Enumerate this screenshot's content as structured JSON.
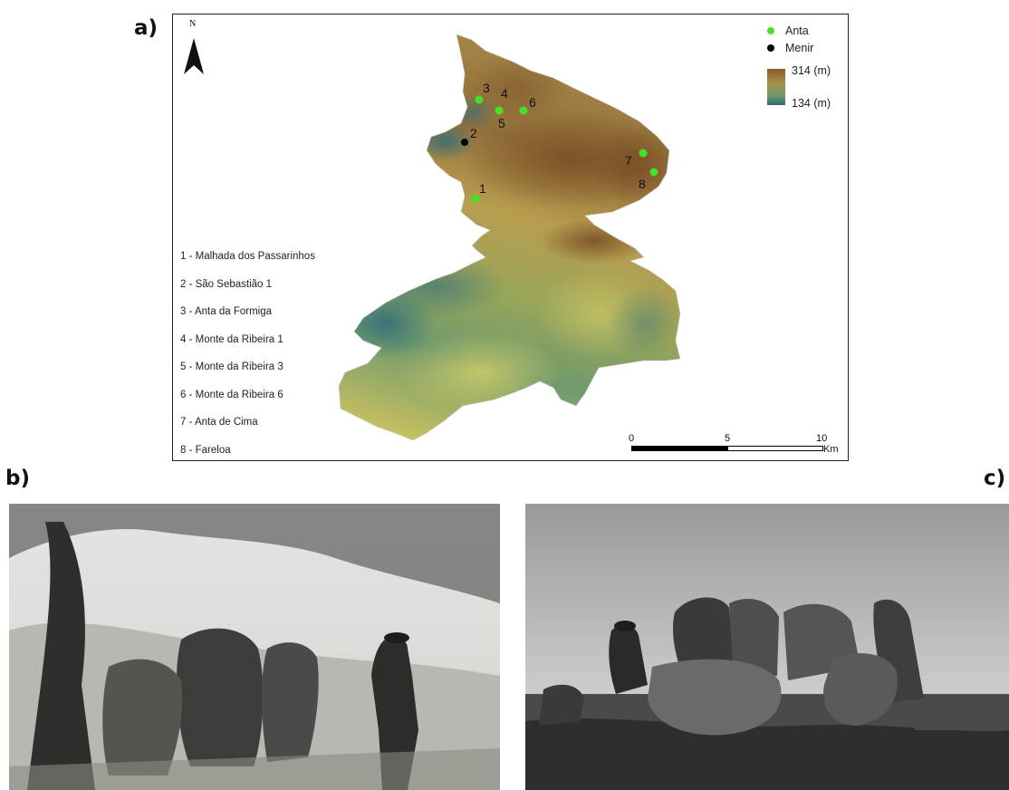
{
  "panels": {
    "a": "a)",
    "b": "b)",
    "c": "c)"
  },
  "map": {
    "north_label": "N",
    "legend": {
      "anta": "Anta",
      "menir": "Menir",
      "anta_color": "#44e02a",
      "menir_color": "#000000",
      "elev_high": "314 (m)",
      "elev_low": "134 (m)"
    },
    "scale_bar": {
      "tick_0": "0",
      "tick_5": "5",
      "tick_10": "10",
      "unit": "Km"
    },
    "sites": [
      {
        "id": "1",
        "name": "1 - Malhada dos Passarinhos",
        "type": "Anta"
      },
      {
        "id": "2",
        "name": "2 - São Sebastião 1",
        "type": "Menir"
      },
      {
        "id": "3",
        "name": "3 - Anta da Formiga",
        "type": "Anta"
      },
      {
        "id": "4",
        "name": "4 - Monte da Ribeira 1",
        "type": "Anta"
      },
      {
        "id": "5",
        "name": "5 - Monte da Ribeira 3",
        "type": "Anta"
      },
      {
        "id": "6",
        "name": "6 - Monte da Ribeira 6",
        "type": "Anta"
      },
      {
        "id": "7",
        "name": "7 - Anta de Cima",
        "type": "Anta"
      },
      {
        "id": "8",
        "name": "8 - Fareloa",
        "type": "Anta"
      }
    ]
  }
}
